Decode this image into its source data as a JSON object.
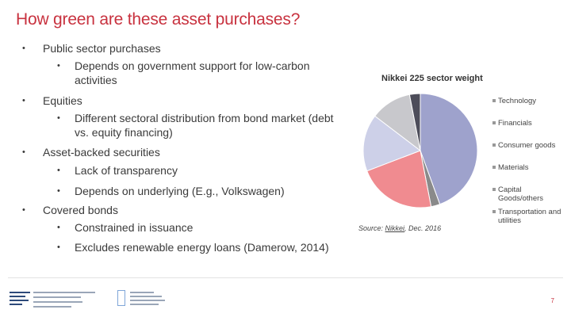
{
  "slide": {
    "title": "How green are these asset purchases?",
    "page_number": "7"
  },
  "bullets": [
    {
      "text": "Public sector purchases",
      "level": 1
    },
    {
      "text": "Depends on government support for low-carbon activities",
      "level": 2
    },
    {
      "text": "Equities",
      "level": 1
    },
    {
      "text": "Different sectoral distribution from bond market (debt vs. equity financing)",
      "level": 2
    },
    {
      "text": "Asset-backed securities",
      "level": 1
    },
    {
      "text": "Lack of transparency",
      "level": 2
    },
    {
      "text": "Depends on underlying (E.g., Volkswagen)",
      "level": 2
    },
    {
      "text": "Covered bonds",
      "level": 1
    },
    {
      "text": "Constrained in issuance",
      "level": 2
    },
    {
      "text": "Excludes renewable energy loans (Damerow, 2014)",
      "level": 2
    }
  ],
  "bullet_glyph": "•",
  "source": {
    "prefix": "Source: ",
    "link": "Nikkei",
    "suffix": ", Dec. 2016"
  },
  "colors": {
    "title": "#c8323f",
    "text": "#3a3a3a"
  },
  "chart_data": {
    "type": "pie",
    "title": "Nikkei 225 sector weight",
    "start_angle_deg": 0,
    "legend_position": "right",
    "series": [
      {
        "values": [
          {
            "label": "Technology",
            "value": 44,
            "color": "#9ea2cc"
          },
          {
            "label": "Financials",
            "value": 2.5,
            "color": "#8a8a8a"
          },
          {
            "label": "Consumer goods",
            "value": 22,
            "color": "#f08b90"
          },
          {
            "label": "Materials",
            "value": 16,
            "color": "#cdd0e8"
          },
          {
            "label": "Capital Goods/others",
            "value": 11.5,
            "color": "#c8c8cc"
          },
          {
            "label": "Transportation and utilities",
            "value": 3,
            "color": "#4d4d5a"
          }
        ]
      }
    ]
  }
}
